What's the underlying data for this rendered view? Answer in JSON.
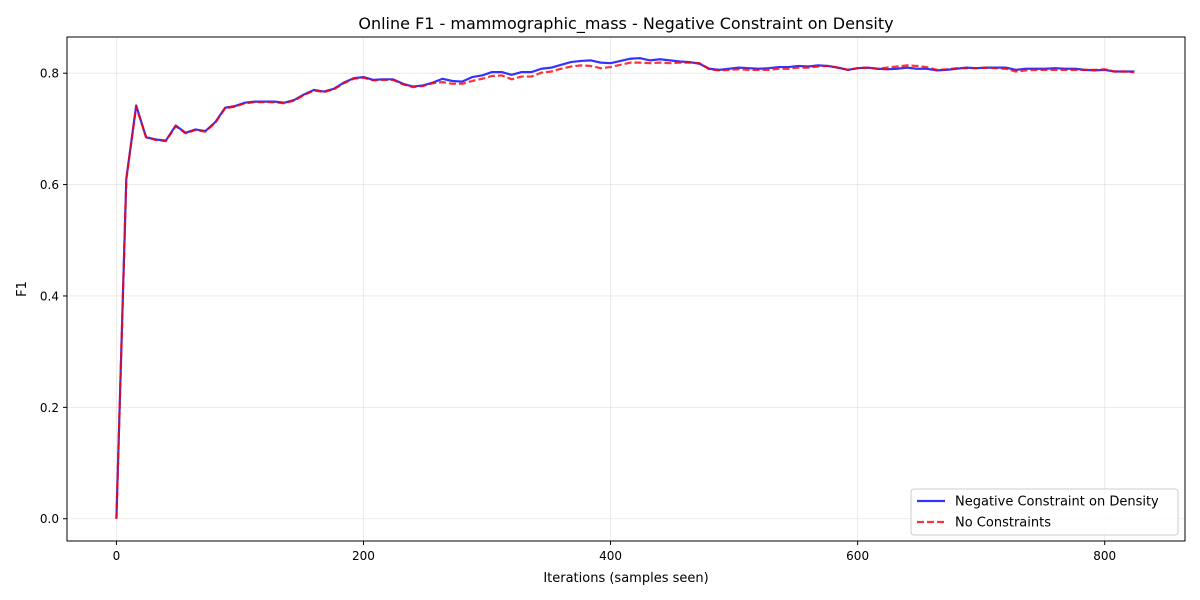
{
  "chart_data": {
    "type": "line",
    "title": "Online F1 - mammographic_mass - Negative Constraint on Density",
    "xlabel": "Iterations (samples seen)",
    "ylabel": "F1",
    "xlim": [
      -40,
      865
    ],
    "ylim": [
      -0.04,
      0.865
    ],
    "x_ticks": [
      0,
      200,
      400,
      600,
      800
    ],
    "y_ticks": [
      0.0,
      0.2,
      0.4,
      0.6,
      0.8
    ],
    "x_tick_labels": [
      "0",
      "200",
      "400",
      "600",
      "800"
    ],
    "y_tick_labels": [
      "0.0",
      "0.2",
      "0.4",
      "0.6",
      "0.8"
    ],
    "grid": true,
    "legend_position": "lower-right",
    "x": [
      0,
      8,
      16,
      24,
      32,
      40,
      48,
      56,
      64,
      72,
      80,
      88,
      96,
      104,
      112,
      120,
      128,
      136,
      144,
      152,
      160,
      168,
      176,
      184,
      192,
      200,
      208,
      216,
      224,
      232,
      240,
      248,
      256,
      264,
      272,
      280,
      288,
      296,
      304,
      312,
      320,
      328,
      336,
      344,
      352,
      360,
      368,
      376,
      384,
      392,
      400,
      408,
      416,
      424,
      432,
      440,
      448,
      456,
      464,
      472,
      480,
      488,
      496,
      504,
      512,
      520,
      528,
      536,
      544,
      552,
      560,
      568,
      576,
      584,
      592,
      600,
      608,
      616,
      624,
      632,
      640,
      648,
      656,
      664,
      672,
      680,
      688,
      696,
      704,
      712,
      720,
      728,
      736,
      744,
      752,
      760,
      768,
      776,
      784,
      792,
      800,
      808,
      816,
      824
    ],
    "series": [
      {
        "name": "Negative Constraint on Density",
        "color": "#0000ff",
        "linestyle": "solid",
        "values": [
          0.0,
          0.61,
          0.742,
          0.685,
          0.681,
          0.679,
          0.706,
          0.693,
          0.699,
          0.696,
          0.712,
          0.738,
          0.741,
          0.747,
          0.749,
          0.749,
          0.749,
          0.747,
          0.752,
          0.762,
          0.77,
          0.767,
          0.772,
          0.783,
          0.791,
          0.793,
          0.788,
          0.789,
          0.789,
          0.781,
          0.776,
          0.778,
          0.783,
          0.79,
          0.786,
          0.785,
          0.793,
          0.796,
          0.802,
          0.802,
          0.797,
          0.802,
          0.802,
          0.808,
          0.81,
          0.815,
          0.82,
          0.822,
          0.823,
          0.819,
          0.818,
          0.822,
          0.826,
          0.827,
          0.823,
          0.825,
          0.823,
          0.821,
          0.82,
          0.817,
          0.808,
          0.806,
          0.808,
          0.81,
          0.809,
          0.808,
          0.809,
          0.811,
          0.811,
          0.813,
          0.812,
          0.814,
          0.813,
          0.81,
          0.806,
          0.809,
          0.81,
          0.808,
          0.807,
          0.808,
          0.81,
          0.808,
          0.808,
          0.805,
          0.806,
          0.808,
          0.81,
          0.809,
          0.81,
          0.81,
          0.81,
          0.806,
          0.808,
          0.808,
          0.808,
          0.809,
          0.808,
          0.808,
          0.806,
          0.805,
          0.806,
          0.803,
          0.803,
          0.803
        ]
      },
      {
        "name": "No Constraints",
        "color": "#ff0000",
        "linestyle": "dashed",
        "values": [
          0.0,
          0.61,
          0.74,
          0.685,
          0.68,
          0.678,
          0.705,
          0.692,
          0.698,
          0.695,
          0.711,
          0.737,
          0.74,
          0.746,
          0.748,
          0.748,
          0.748,
          0.746,
          0.751,
          0.761,
          0.769,
          0.766,
          0.771,
          0.782,
          0.79,
          0.792,
          0.787,
          0.788,
          0.788,
          0.78,
          0.775,
          0.777,
          0.782,
          0.784,
          0.781,
          0.781,
          0.786,
          0.79,
          0.795,
          0.796,
          0.789,
          0.794,
          0.794,
          0.801,
          0.803,
          0.808,
          0.812,
          0.814,
          0.813,
          0.809,
          0.811,
          0.815,
          0.819,
          0.819,
          0.818,
          0.819,
          0.818,
          0.819,
          0.819,
          0.818,
          0.807,
          0.805,
          0.806,
          0.807,
          0.806,
          0.806,
          0.806,
          0.808,
          0.808,
          0.81,
          0.81,
          0.812,
          0.813,
          0.81,
          0.806,
          0.809,
          0.81,
          0.808,
          0.81,
          0.812,
          0.814,
          0.813,
          0.811,
          0.806,
          0.807,
          0.809,
          0.809,
          0.809,
          0.81,
          0.809,
          0.808,
          0.803,
          0.805,
          0.806,
          0.806,
          0.806,
          0.806,
          0.806,
          0.806,
          0.806,
          0.807,
          0.803,
          0.803,
          0.802
        ]
      }
    ]
  }
}
